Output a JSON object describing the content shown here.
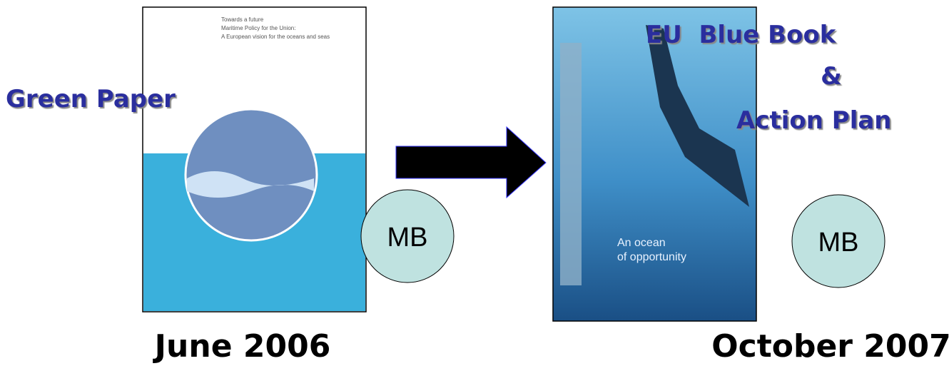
{
  "left": {
    "label": "Green Paper",
    "date": "June 2006",
    "badge": "MB",
    "cover_title": [
      "Towards a future",
      "Maritime Policy for the Union:",
      "A European vision for the oceans and seas"
    ]
  },
  "right": {
    "label": [
      "EU  Blue Book",
      "&",
      "Action Plan"
    ],
    "date": "October 2007",
    "badge": "MB",
    "cover_title": [
      "An ocean",
      "of opportunity"
    ]
  }
}
